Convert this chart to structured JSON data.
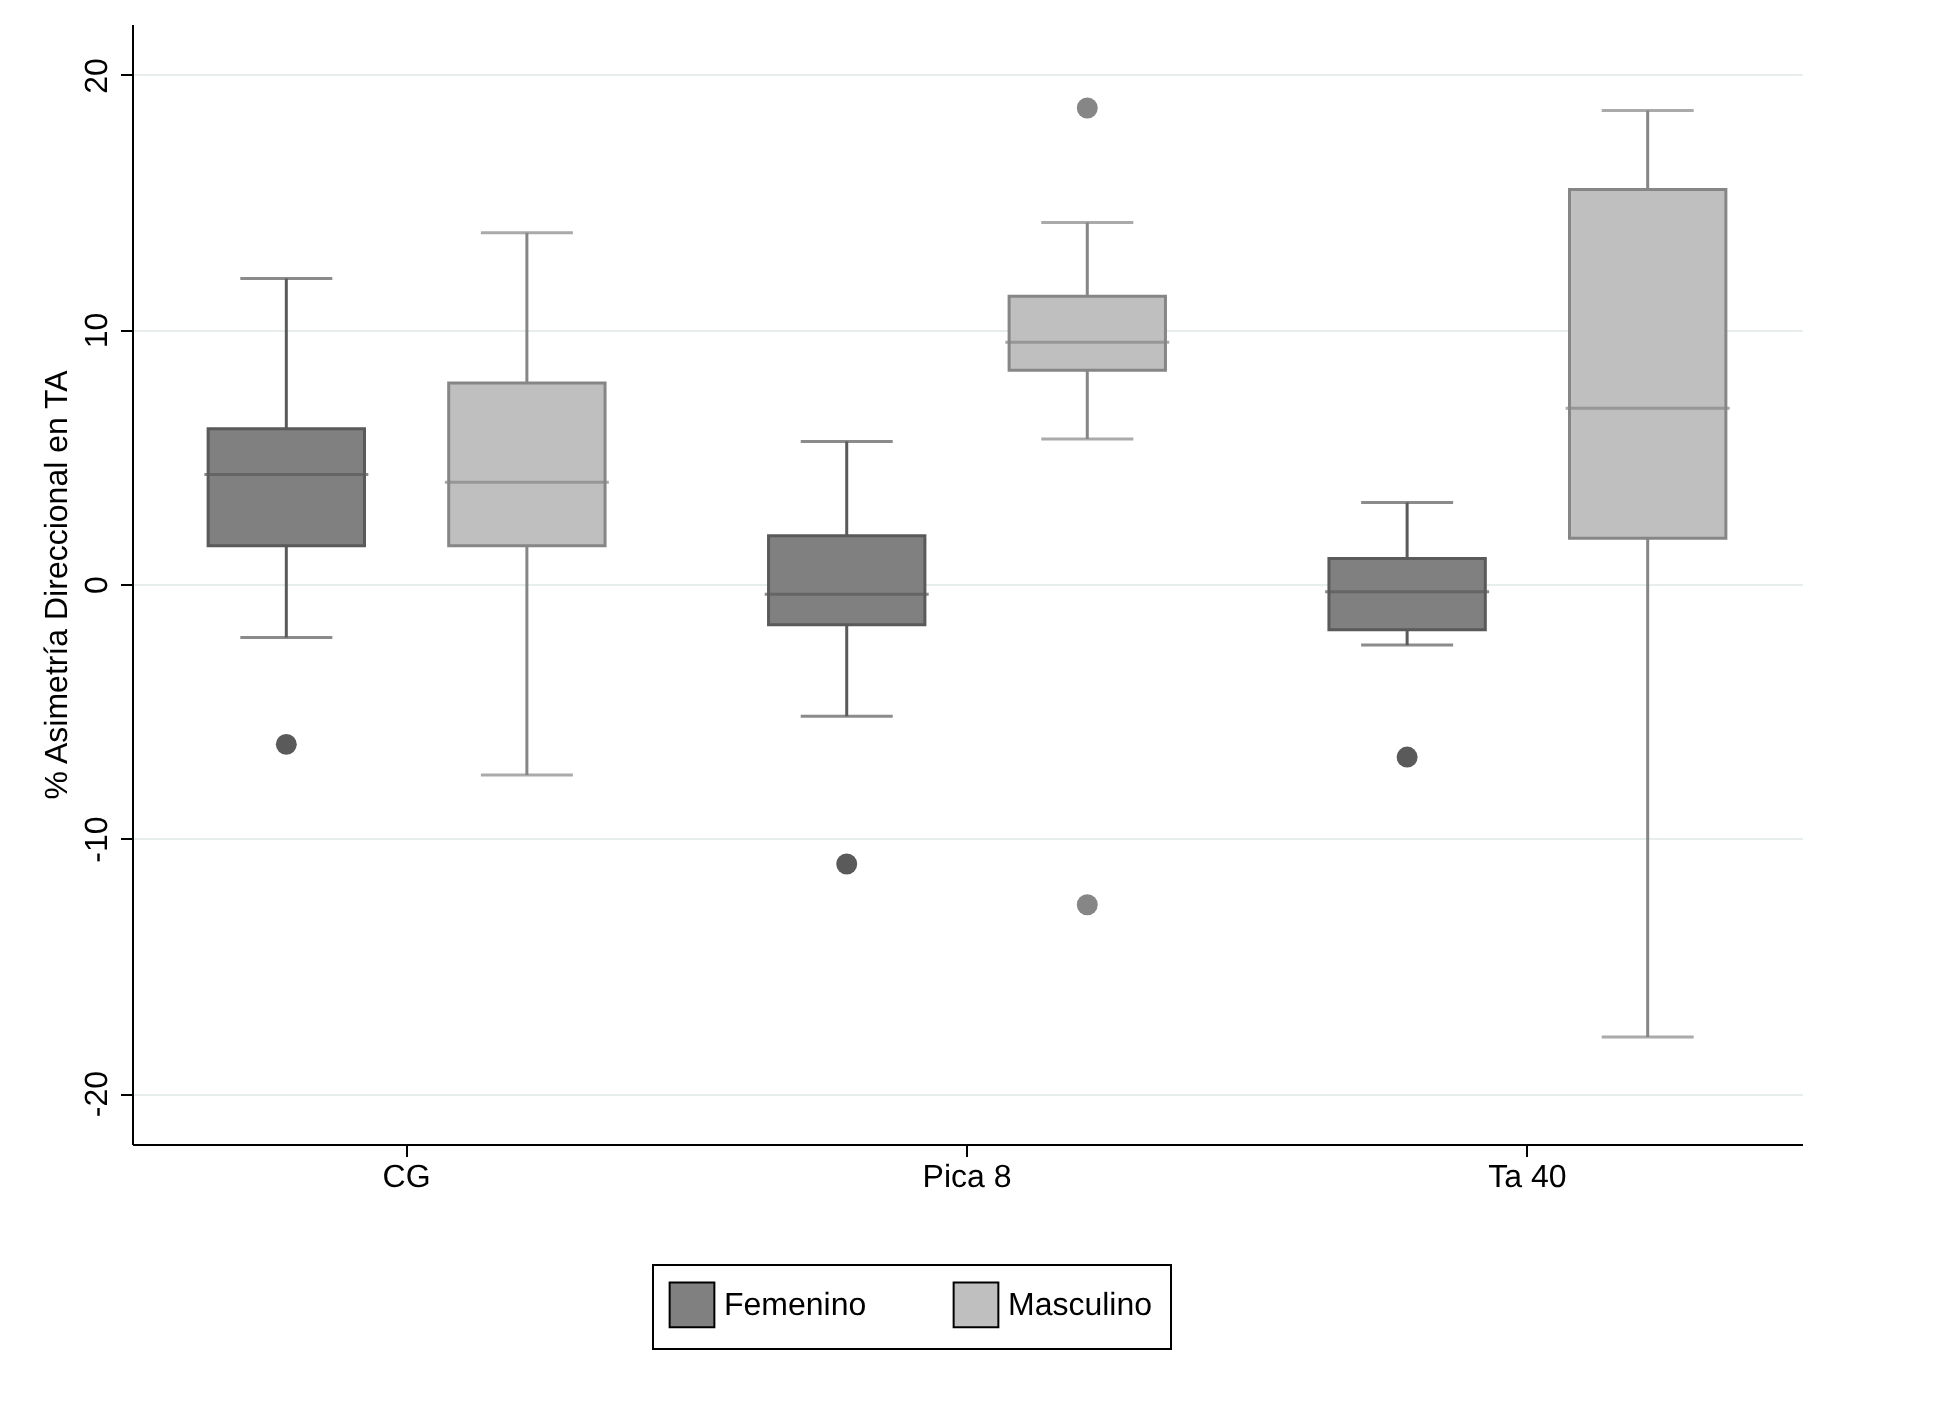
{
  "chart_data": {
    "type": "box",
    "ylabel": "% Asimetría Direccional en TA",
    "categories": [
      "CG",
      "Pica 8",
      "Ta 40"
    ],
    "ylim": [
      -22,
      22
    ],
    "yticks": [
      -20,
      -10,
      0,
      10,
      20
    ],
    "grid": "y",
    "legend": "bottom",
    "series": [
      {
        "name": "Femenino",
        "color": "#808080",
        "boxes": [
          {
            "low": -2.1,
            "q1": 1.5,
            "median": 4.3,
            "q3": 6.1,
            "high": 12.0,
            "outliers": [
              -6.3
            ]
          },
          {
            "low": -5.2,
            "q1": -1.6,
            "median": -0.4,
            "q3": 1.9,
            "high": 5.6,
            "outliers": [
              -11.0
            ]
          },
          {
            "low": -2.4,
            "q1": -1.8,
            "median": -0.3,
            "q3": 1.0,
            "high": 3.2,
            "outliers": [
              -6.8
            ]
          }
        ]
      },
      {
        "name": "Masculino",
        "color": "#bfbfbf",
        "boxes": [
          {
            "low": -7.5,
            "q1": 1.5,
            "median": 4.0,
            "q3": 7.9,
            "high": 13.8
          },
          {
            "low": 5.7,
            "q1": 8.4,
            "median": 9.5,
            "q3": 11.3,
            "high": 14.2,
            "outliers": [
              18.7,
              -12.6
            ]
          },
          {
            "low": -17.8,
            "q1": 1.8,
            "median": 6.9,
            "q3": 15.5,
            "high": 18.6
          }
        ]
      }
    ]
  }
}
